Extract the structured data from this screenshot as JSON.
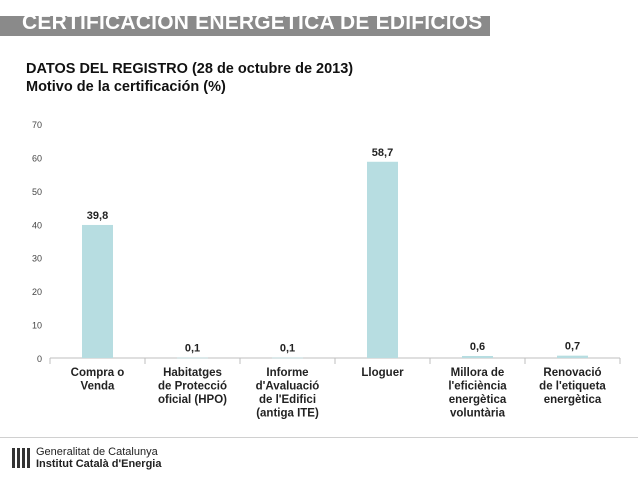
{
  "banner": {
    "title": "CERTIFICACIÓN ENERGÉTICA DE EDIFICIOS"
  },
  "heading": {
    "line1": "DATOS DEL REGISTRO (28 de octubre de 2013)",
    "line2": "Motivo de la certificación (%)"
  },
  "chart_data": {
    "type": "bar",
    "categories": [
      [
        "Compra o",
        "Venda"
      ],
      [
        "Habitatges",
        "de Protecció",
        "oficial (HPO)"
      ],
      [
        "Informe",
        "d'Avaluació",
        "de l'Edifici",
        "(antiga ITE)"
      ],
      [
        "Lloguer"
      ],
      [
        "Millora de",
        "l'eficiència",
        "energètica",
        "voluntària"
      ],
      [
        "Renovació",
        "de l'etiqueta",
        "energètica"
      ]
    ],
    "values": [
      39.8,
      0.1,
      0.1,
      58.7,
      0.6,
      0.7
    ],
    "value_labels": [
      "39,8",
      "0,1",
      "0,1",
      "58,7",
      "0,6",
      "0,7"
    ],
    "ylim": [
      0,
      70
    ],
    "yticks": [
      0,
      10,
      20,
      30,
      40,
      50,
      60,
      70
    ],
    "xlabel": "",
    "ylabel": "",
    "grid": false,
    "legend": "none",
    "bar_color": "#b7dde1"
  },
  "footer": {
    "line1": "Generalitat de Catalunya",
    "line2": "Institut Català d'Energia"
  }
}
